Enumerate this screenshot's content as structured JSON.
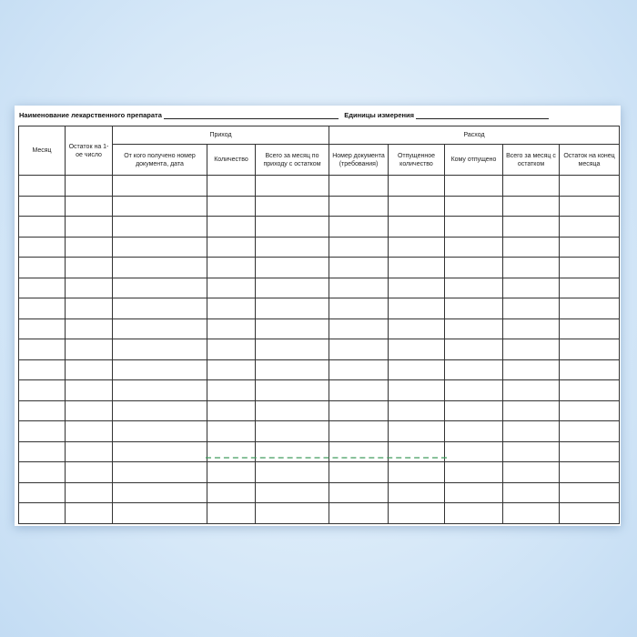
{
  "form": {
    "drug_name_label": "Наименование лекарственного препарата",
    "units_label": "Единицы измерения",
    "headers": {
      "month": "Месяц",
      "opening_balance": "Остаток на 1-ое число",
      "income_group": "Приход",
      "income_from": "От кого получено номер документа, дата",
      "income_qty": "Количество",
      "income_total": "Всего за месяц по приходу с остатком",
      "expense_group": "Расход",
      "doc_number": "Номер документа (требования)",
      "issued_qty": "Отпущенное количество",
      "issued_to": "Кому отпущено",
      "expense_total": "Всего за месяц с остатком",
      "closing_balance": "Остаток на конец месяца"
    },
    "empty_rows": 17
  },
  "colors": {
    "border": "#333333",
    "background": "#d6e8f8",
    "watermark": "#3c9a5a"
  }
}
